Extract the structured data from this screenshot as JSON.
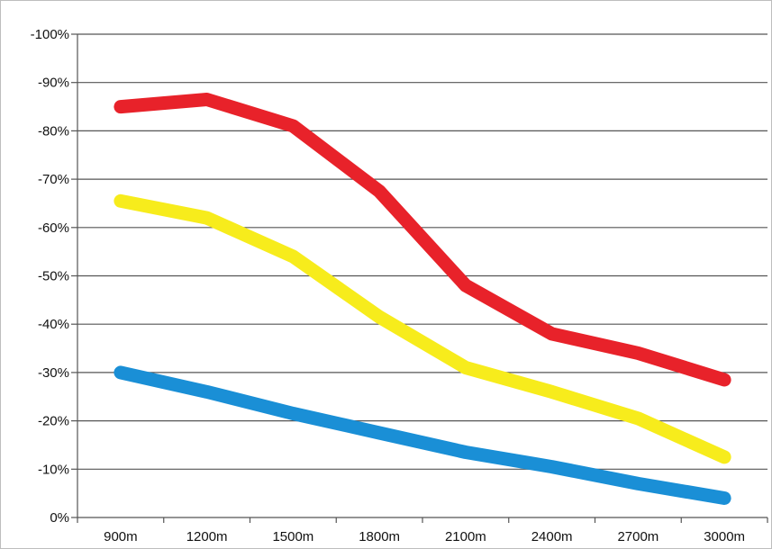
{
  "chart_data": {
    "type": "line",
    "categories": [
      "900m",
      "1200m",
      "1500m",
      "1800m",
      "2100m",
      "2400m",
      "2700m",
      "3000m"
    ],
    "y_tick_labels": [
      "0%",
      "-10%",
      "-20%",
      "-30%",
      "-40%",
      "-50%",
      "-60%",
      "-70%",
      "-80%",
      "-90%",
      "-100%"
    ],
    "ylim": [
      0,
      100
    ],
    "grid": true,
    "legend": "none",
    "series": [
      {
        "color": "#e8222a",
        "values": [
          85,
          86.5,
          81,
          67.5,
          48,
          38,
          34,
          28.5
        ]
      },
      {
        "color": "#f7ec1c",
        "values": [
          65.5,
          62,
          54,
          41.5,
          31,
          26,
          20.5,
          12.5
        ]
      },
      {
        "color": "#1a8fd6",
        "values": [
          30,
          26,
          21.5,
          17.5,
          13.5,
          10.5,
          7,
          4
        ]
      }
    ]
  }
}
